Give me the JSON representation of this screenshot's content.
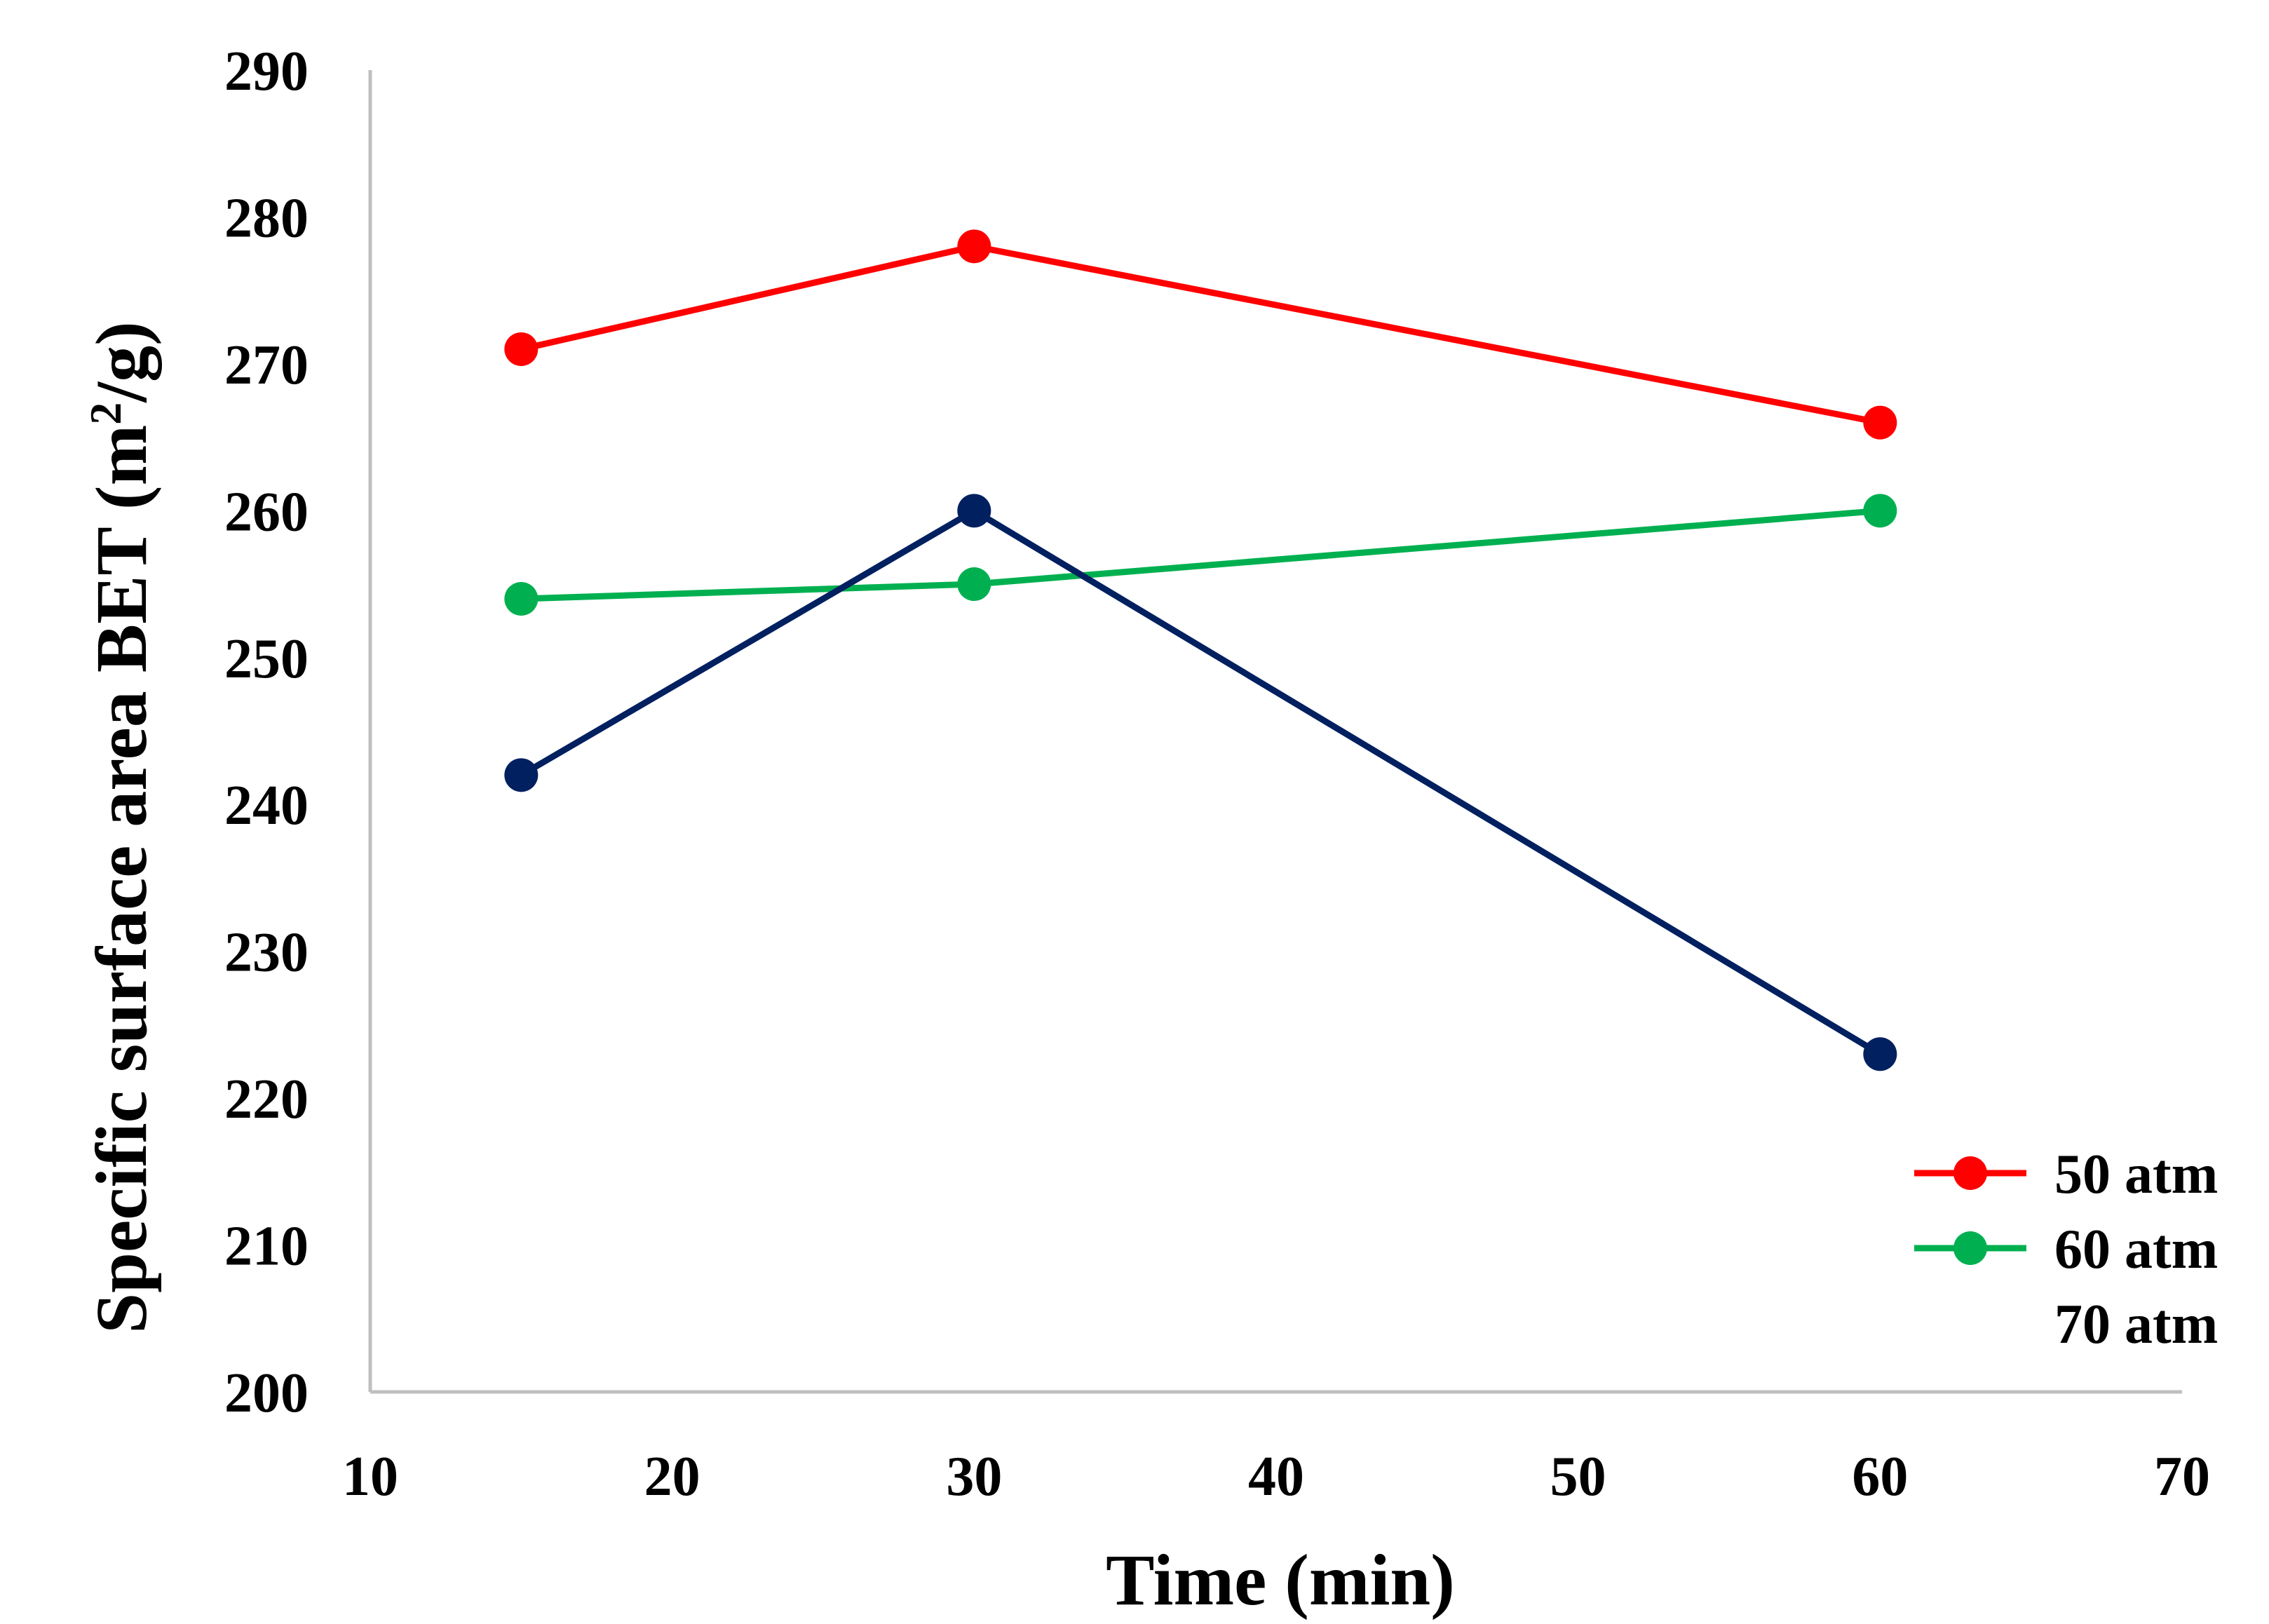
{
  "chart_data": {
    "type": "line",
    "title": "",
    "xlabel": "Time (min)",
    "ylabel": "Specific surface area BET (m²/g)",
    "ylabel_parts": {
      "before": "Specific surface area BET (m",
      "sup": "2",
      "after": "/g)"
    },
    "xlim": [
      10,
      70
    ],
    "ylim": [
      200,
      290
    ],
    "xticks": [
      10,
      20,
      30,
      40,
      50,
      60,
      70
    ],
    "yticks": [
      200,
      210,
      220,
      230,
      240,
      250,
      260,
      270,
      280,
      290
    ],
    "grid": false,
    "legend_position": "bottom-right",
    "series": [
      {
        "name": "50 atm",
        "color": "#ff0000",
        "x": [
          15,
          30,
          60
        ],
        "y": [
          271,
          278,
          266
        ]
      },
      {
        "name": "60 atm",
        "color": "#00b050",
        "x": [
          15,
          30,
          60
        ],
        "y": [
          254,
          255,
          260
        ]
      },
      {
        "name": "70 atm",
        "color": "#002060",
        "x": [
          15,
          30,
          60
        ],
        "y": [
          242,
          260,
          223
        ]
      }
    ]
  }
}
